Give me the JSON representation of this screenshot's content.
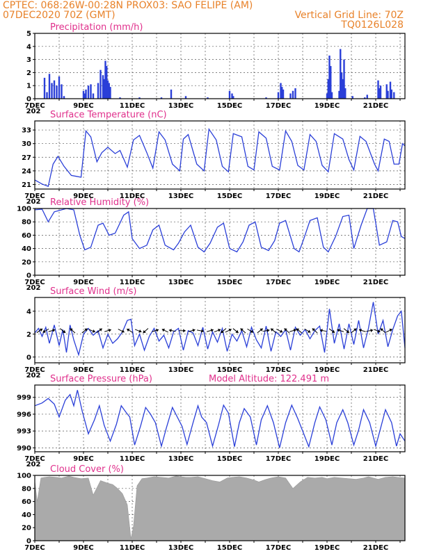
{
  "header": {
    "line1": "CPTEC:   068:26W-00:28N  PROX03: SAO FELIPE (AM)",
    "line2_left": "07DEC2020 70Z (GMT)",
    "line2_right": "Vertical Grid Line: 70Z",
    "line3_right": "TQ0126L028"
  },
  "colors": {
    "header": "#e8822a",
    "title": "#e0308c",
    "series": "#2a3fd8",
    "cloud": "#aaaaaa",
    "arrow": "#000000"
  },
  "x_tick_labels": [
    "7DEC",
    "9DEC",
    "11DEC",
    "13DEC",
    "15DEC",
    "17DEC",
    "19DEC",
    "21DEC"
  ],
  "x_year_label": "202",
  "chart_data": [
    {
      "id": "precip",
      "type": "bar",
      "title": "Precipitation (mm/h)",
      "ylim": [
        0,
        5
      ],
      "yticks": [
        0,
        1,
        2,
        3,
        4,
        5
      ],
      "xlim": [
        7,
        22.2
      ],
      "grid": "dotted",
      "x": [
        7.4,
        7.5,
        7.6,
        7.7,
        7.8,
        7.9,
        8.0,
        8.1,
        8.2,
        9.0,
        9.05,
        9.1,
        9.2,
        9.3,
        9.4,
        9.6,
        9.7,
        9.8,
        9.85,
        9.9,
        9.95,
        10.0,
        10.05,
        10.1,
        10.5,
        11.3,
        12.2,
        12.6,
        13.2,
        14.1,
        15.0,
        15.1,
        15.15,
        16.5,
        17.0,
        17.1,
        17.15,
        17.2,
        17.5,
        17.6,
        17.7,
        19.0,
        19.05,
        19.1,
        19.15,
        19.2,
        19.5,
        19.55,
        19.6,
        19.65,
        19.7,
        19.75,
        20.05,
        20.55,
        20.65,
        21.1,
        21.15,
        21.2,
        21.45,
        21.5,
        21.6,
        21.65,
        21.75
      ],
      "values": [
        1.6,
        0.5,
        1.9,
        1.2,
        1.4,
        1.0,
        1.7,
        1.1,
        0.2,
        0.6,
        0.4,
        0.7,
        1.0,
        1.1,
        0.4,
        1.2,
        2.2,
        1.8,
        1.5,
        2.9,
        2.5,
        1.4,
        1.2,
        0.9,
        0.1,
        0.1,
        0.1,
        0.7,
        0.2,
        0.1,
        0.6,
        0.4,
        0.2,
        0.1,
        0.5,
        1.2,
        0.9,
        0.7,
        0.4,
        0.6,
        0.8,
        0.4,
        1.5,
        3.3,
        2.5,
        0.5,
        0.6,
        3.8,
        2.0,
        1.5,
        3.0,
        0.8,
        0.2,
        0.1,
        0.3,
        1.4,
        0.8,
        1.0,
        1.1,
        0.6,
        1.3,
        0.7,
        0.5
      ]
    },
    {
      "id": "temp",
      "type": "line",
      "title": "Surface Temperature (nC)",
      "ylim": [
        20,
        35
      ],
      "yticks": [
        21,
        24,
        27,
        30,
        33
      ],
      "xlim": [
        7,
        22.2
      ],
      "grid": "dotted",
      "x": [
        7.0,
        7.3,
        7.55,
        7.75,
        7.95,
        8.2,
        8.5,
        8.7,
        8.9,
        9.1,
        9.3,
        9.55,
        9.75,
        10.0,
        10.3,
        10.5,
        10.8,
        11.05,
        11.3,
        11.6,
        11.85,
        12.1,
        12.35,
        12.65,
        12.95,
        13.1,
        13.3,
        13.65,
        13.95,
        14.15,
        14.45,
        14.7,
        14.95,
        15.15,
        15.5,
        15.75,
        16.0,
        16.2,
        16.5,
        16.75,
        17.05,
        17.3,
        17.55,
        17.8,
        18.05,
        18.3,
        18.55,
        18.8,
        19.05,
        19.3,
        19.65,
        19.9,
        20.1,
        20.35,
        20.6,
        20.95,
        21.1,
        21.35,
        21.55,
        21.75,
        21.95,
        22.1,
        22.2
      ],
      "values": [
        22,
        21.1,
        20.6,
        25.5,
        27.2,
        25.0,
        23.0,
        22.8,
        22.6,
        32.8,
        31.5,
        26.0,
        28.0,
        29.2,
        27.8,
        28.5,
        24.8,
        30.8,
        31.8,
        28.0,
        24.6,
        32.6,
        30.8,
        25.5,
        24.0,
        31.0,
        32.0,
        25.5,
        24.0,
        33.2,
        30.8,
        25.0,
        23.8,
        32.2,
        31.5,
        25.0,
        24.2,
        32.6,
        31.2,
        25.0,
        24.2,
        32.8,
        30.5,
        25.2,
        24.2,
        32.0,
        30.5,
        25.2,
        23.8,
        32.2,
        31.0,
        26.5,
        24.2,
        31.6,
        30.5,
        25.5,
        24.0,
        31.0,
        30.5,
        25.5,
        25.5,
        30.0,
        29.5
      ]
    },
    {
      "id": "rh",
      "type": "line",
      "title": "Relative Humidity (%)",
      "ylim": [
        0,
        100
      ],
      "yticks": [
        0,
        20,
        40,
        60,
        80,
        100
      ],
      "xlim": [
        7,
        22.2
      ],
      "grid": "dotted",
      "x": [
        7.0,
        7.3,
        7.55,
        7.8,
        8.0,
        8.3,
        8.6,
        8.85,
        9.05,
        9.3,
        9.6,
        9.8,
        10.05,
        10.3,
        10.65,
        10.85,
        11.0,
        11.3,
        11.6,
        11.85,
        12.1,
        12.35,
        12.7,
        12.9,
        13.15,
        13.4,
        13.7,
        13.95,
        14.2,
        14.5,
        14.75,
        15.0,
        15.3,
        15.55,
        15.8,
        16.05,
        16.3,
        16.6,
        16.85,
        17.05,
        17.3,
        17.65,
        17.85,
        18.05,
        18.3,
        18.6,
        18.85,
        19.05,
        19.35,
        19.65,
        19.9,
        20.1,
        20.4,
        20.65,
        20.9,
        21.15,
        21.45,
        21.7,
        21.9,
        22.05,
        22.2
      ],
      "values": [
        98,
        99,
        80,
        95,
        97,
        100,
        98,
        60,
        38,
        42,
        75,
        78,
        60,
        63,
        90,
        95,
        55,
        40,
        45,
        68,
        75,
        45,
        38,
        48,
        65,
        75,
        42,
        35,
        48,
        72,
        78,
        40,
        35,
        50,
        75,
        80,
        42,
        37,
        52,
        78,
        82,
        40,
        35,
        55,
        82,
        86,
        42,
        35,
        58,
        88,
        90,
        40,
        75,
        100,
        100,
        45,
        50,
        82,
        80,
        58,
        55
      ]
    },
    {
      "id": "wind",
      "type": "line",
      "title": "Surface Wind (m/s)",
      "ylim": [
        -0.5,
        5.2
      ],
      "yticks": [
        0,
        2,
        4
      ],
      "xlim": [
        7,
        22.2
      ],
      "grid": "dotted",
      "x": [
        7.0,
        7.15,
        7.3,
        7.45,
        7.6,
        7.8,
        8.0,
        8.15,
        8.3,
        8.45,
        8.6,
        8.8,
        9.0,
        9.2,
        9.4,
        9.6,
        9.8,
        10.0,
        10.2,
        10.4,
        10.6,
        10.8,
        10.95,
        11.1,
        11.3,
        11.5,
        11.7,
        11.9,
        12.1,
        12.3,
        12.5,
        12.7,
        12.9,
        13.1,
        13.3,
        13.5,
        13.7,
        13.9,
        14.1,
        14.3,
        14.5,
        14.7,
        14.9,
        15.1,
        15.3,
        15.5,
        15.7,
        15.9,
        16.1,
        16.3,
        16.5,
        16.7,
        16.9,
        17.1,
        17.3,
        17.5,
        17.7,
        17.9,
        18.1,
        18.3,
        18.5,
        18.7,
        18.9,
        19.1,
        19.3,
        19.5,
        19.7,
        19.9,
        20.1,
        20.3,
        20.5,
        20.7,
        20.9,
        21.1,
        21.3,
        21.5,
        21.7,
        21.9,
        22.05,
        22.2
      ],
      "values": [
        2.1,
        2.5,
        1.8,
        2.6,
        1.2,
        2.8,
        1.0,
        2.4,
        0.4,
        2.8,
        1.5,
        0.2,
        2.0,
        2.5,
        1.9,
        2.3,
        0.8,
        2.0,
        1.2,
        1.6,
        2.2,
        3.2,
        3.3,
        1.0,
        2.0,
        0.6,
        1.8,
        2.5,
        1.4,
        1.9,
        0.8,
        2.2,
        2.5,
        0.6,
        2.3,
        2.1,
        1.0,
        2.6,
        0.7,
        2.2,
        1.3,
        2.5,
        0.5,
        2.0,
        1.4,
        2.3,
        0.9,
        2.6,
        1.5,
        0.8,
        2.7,
        0.5,
        2.2,
        1.8,
        2.4,
        0.6,
        2.6,
        1.9,
        2.4,
        1.6,
        2.3,
        2.7,
        0.4,
        4.2,
        1.2,
        2.9,
        0.7,
        2.9,
        1.1,
        3.2,
        0.8,
        2.5,
        4.8,
        2.0,
        3.2,
        0.9,
        2.4,
        3.6,
        4.0,
        0.8
      ]
    },
    {
      "id": "pressure",
      "type": "line",
      "title": "Surface Pressure (hPa)",
      "annotation": "Model Altitude: 122.491 m",
      "ylim": [
        989.3,
        1001.2
      ],
      "yticks": [
        990,
        993,
        996,
        999
      ],
      "xlim": [
        7,
        22.2
      ],
      "grid": "dotted",
      "x": [
        7.0,
        7.3,
        7.55,
        7.8,
        8.0,
        8.25,
        8.45,
        8.6,
        8.75,
        8.95,
        9.2,
        9.45,
        9.65,
        9.85,
        10.1,
        10.35,
        10.55,
        10.75,
        10.9,
        11.1,
        11.35,
        11.55,
        11.75,
        11.95,
        12.2,
        12.4,
        12.65,
        12.85,
        13.05,
        13.25,
        13.5,
        13.7,
        13.85,
        14.05,
        14.3,
        14.55,
        14.75,
        14.95,
        15.2,
        15.4,
        15.6,
        15.85,
        16.1,
        16.3,
        16.55,
        16.8,
        17.05,
        17.3,
        17.55,
        17.8,
        18.0,
        18.25,
        18.5,
        18.7,
        18.95,
        19.2,
        19.4,
        19.65,
        19.85,
        20.1,
        20.3,
        20.5,
        20.75,
        21.0,
        21.2,
        21.4,
        21.65,
        21.85,
        22.0,
        22.2
      ],
      "values": [
        997.5,
        998.0,
        998.8,
        997.8,
        995.5,
        998.5,
        999.5,
        997.5,
        1000.3,
        996.5,
        992.5,
        995.0,
        997.5,
        994.0,
        991.2,
        994.2,
        997.5,
        996.3,
        995.5,
        990.5,
        994.0,
        997.2,
        996.0,
        994.5,
        990.3,
        993.5,
        997.2,
        995.5,
        993.8,
        990.6,
        994.5,
        997.5,
        995.5,
        994.5,
        990.3,
        994.2,
        997.6,
        996.2,
        990.2,
        994.5,
        997.0,
        995.5,
        990.5,
        995.0,
        997.5,
        994.5,
        990.0,
        994.5,
        997.6,
        995.2,
        993.0,
        990.2,
        994.5,
        997.3,
        995.0,
        990.5,
        994.5,
        996.8,
        994.5,
        990.5,
        993.2,
        996.8,
        994.5,
        990.3,
        993.5,
        996.8,
        994.5,
        990.3,
        992.5,
        991.2
      ]
    },
    {
      "id": "cloud",
      "type": "area",
      "title": "Cloud Cover (%)",
      "ylim": [
        0,
        100
      ],
      "yticks": [
        0,
        20,
        40,
        60,
        80,
        100
      ],
      "xlim": [
        7,
        22.2
      ],
      "grid": "dotted",
      "x": [
        7.0,
        7.1,
        7.25,
        7.4,
        7.6,
        7.9,
        8.1,
        8.2,
        8.4,
        8.6,
        8.9,
        9.2,
        9.4,
        9.7,
        10.0,
        10.2,
        10.4,
        10.6,
        10.8,
        10.95,
        11.05,
        11.2,
        11.4,
        11.6,
        11.9,
        12.2,
        12.5,
        12.8,
        13.0,
        13.2,
        13.4,
        13.7,
        14.0,
        14.3,
        14.6,
        14.9,
        15.1,
        15.4,
        15.7,
        16.0,
        16.2,
        16.5,
        16.7,
        17.0,
        17.3,
        17.6,
        17.9,
        18.2,
        18.5,
        18.8,
        19.0,
        19.3,
        19.6,
        19.9,
        20.2,
        20.5,
        20.7,
        20.9,
        21.1,
        21.4,
        21.7,
        21.9,
        22.2
      ],
      "values": [
        92,
        60,
        96,
        97,
        98,
        97,
        96,
        97,
        99,
        97,
        95,
        96,
        70,
        92,
        88,
        86,
        80,
        72,
        55,
        3,
        22,
        84,
        95,
        96,
        98,
        97,
        96,
        99,
        98,
        97,
        97,
        98,
        95,
        92,
        90,
        96,
        97,
        98,
        96,
        93,
        90,
        94,
        96,
        98,
        96,
        80,
        90,
        97,
        96,
        97,
        95,
        97,
        96,
        95,
        94,
        96,
        98,
        96,
        94,
        97,
        98,
        97,
        96
      ]
    }
  ],
  "wind_arrows": {
    "x": [
      7.2,
      7.45,
      7.7,
      8.15,
      8.55,
      9.05,
      9.35,
      9.65,
      10.0,
      10.55,
      10.9,
      11.25,
      11.55,
      11.95,
      12.35,
      12.65,
      13.05,
      13.45,
      13.8,
      14.2,
      14.5,
      14.75,
      14.95,
      15.25,
      15.55,
      15.85,
      16.25,
      16.5,
      16.8,
      17.05,
      17.35,
      17.6,
      17.85,
      18.2,
      18.5,
      18.85,
      19.2,
      19.55,
      19.8,
      20.1,
      20.45,
      20.75,
      21.05,
      21.3,
      21.55
    ],
    "dx": [
      1,
      -1,
      1,
      1,
      -1,
      1,
      1,
      1,
      1,
      1,
      -1,
      1,
      -1,
      1,
      -1,
      -1,
      1,
      1,
      1,
      1,
      1,
      -1,
      1,
      1,
      -1,
      1,
      1,
      1,
      -1,
      1,
      -1,
      1,
      -1,
      1,
      -1,
      -1,
      1,
      -1,
      1,
      1,
      -1,
      1,
      1,
      -1,
      1
    ],
    "dy": [
      0.7,
      -0.6,
      0.3,
      -0.8,
      0.9,
      0.8,
      -0.4,
      0.8,
      0.3,
      -0.5,
      0.6,
      -0.4,
      -0.9,
      0.3,
      0.5,
      0.2,
      0.0,
      0.3,
      -0.2,
      0.3,
      0.4,
      -0.9,
      0.5,
      -0.8,
      0.9,
      -0.6,
      0.8,
      0.2,
      0.8,
      -0.5,
      0.9,
      0.3,
      0.8,
      -0.6,
      0.9,
      0.2,
      -0.7,
      0.3,
      -0.8,
      0.8,
      0.3,
      0.2,
      -0.4,
      0.9,
      0.5
    ]
  }
}
